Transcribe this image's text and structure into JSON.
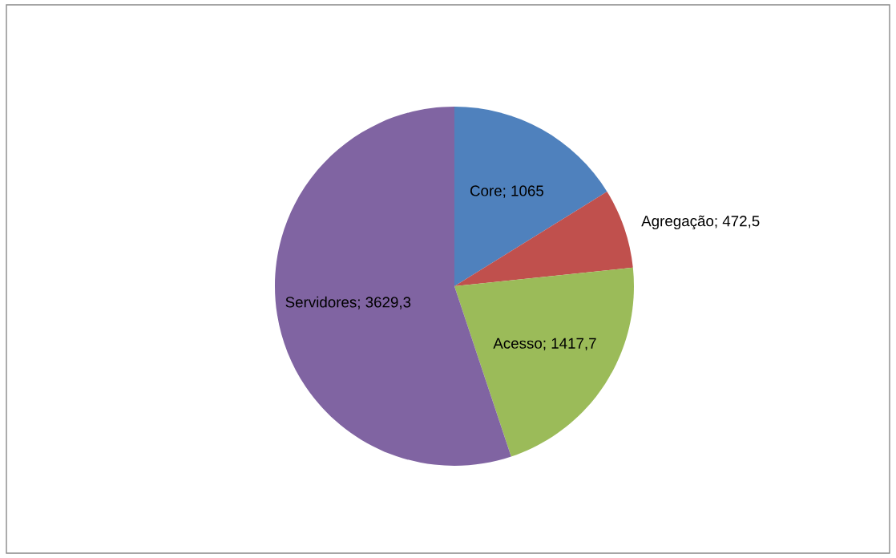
{
  "chart_data": {
    "type": "pie",
    "categories": [
      "Core",
      "Agregação",
      "Acesso",
      "Servidores"
    ],
    "values": [
      1065,
      472.5,
      1417.7,
      3629.3
    ],
    "colors": [
      "#4f81bd",
      "#c0504d",
      "#9bbb59",
      "#8064a2"
    ],
    "value_labels": [
      "1065",
      "472,5",
      "1417,7",
      "3629,3"
    ],
    "legend": false
  }
}
